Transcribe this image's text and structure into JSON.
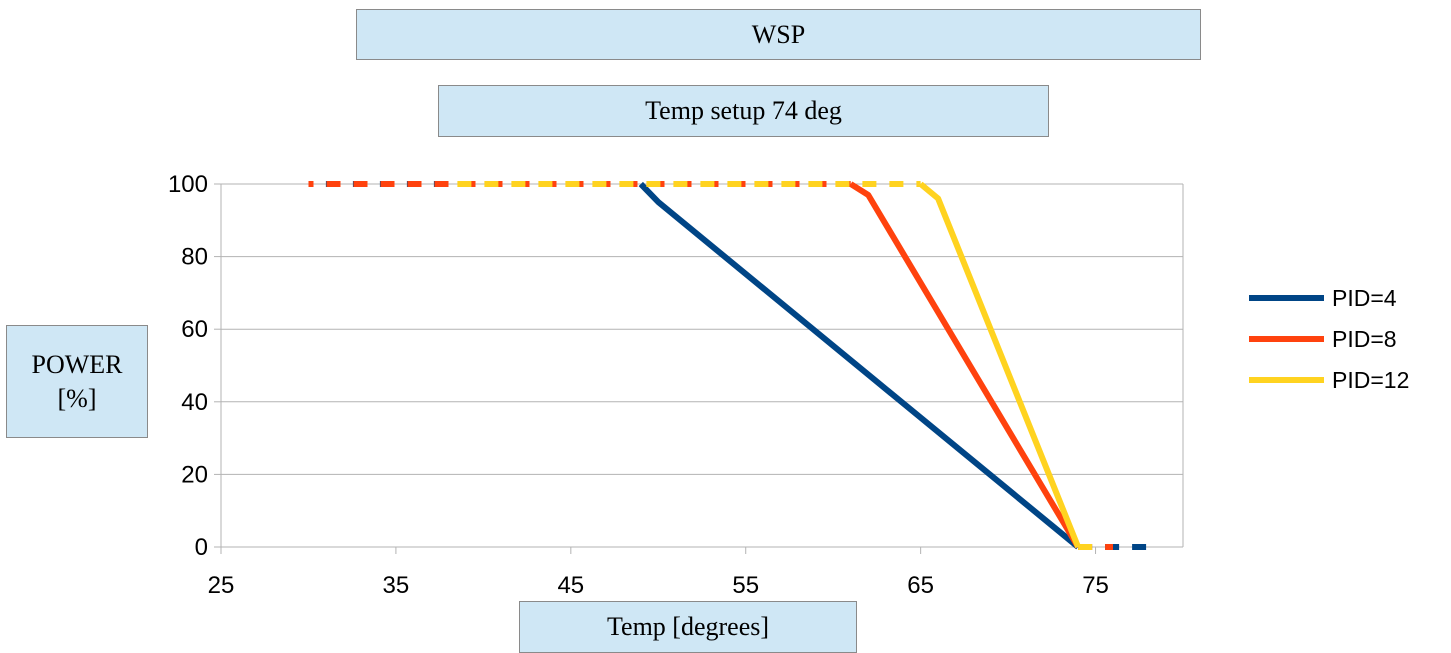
{
  "chart_data": {
    "type": "line",
    "title": "WSP",
    "subtitle": "Temp setup 74 deg",
    "xlabel": "Temp [degrees]",
    "ylabel_line1": "POWER",
    "ylabel_line2": "[%]",
    "xlim": [
      25,
      80
    ],
    "ylim": [
      0,
      100
    ],
    "xticks": [
      25,
      35,
      45,
      55,
      65,
      75
    ],
    "yticks": [
      0,
      20,
      40,
      60,
      80,
      100
    ],
    "grid": "horizontal",
    "legend_position": "right",
    "series": [
      {
        "name": "PID=4",
        "color": "#004586",
        "dashed": [
          [
            31,
            100
          ],
          [
            49,
            100
          ]
        ],
        "solid": [
          [
            49,
            100
          ],
          [
            50,
            95
          ],
          [
            74,
            0
          ]
        ],
        "tail": [
          [
            74,
            0
          ],
          [
            78,
            0
          ]
        ]
      },
      {
        "name": "PID=8",
        "color": "#ff420e",
        "dashed": [
          [
            30,
            100
          ],
          [
            61,
            100
          ]
        ],
        "solid": [
          [
            61,
            100
          ],
          [
            62,
            97
          ],
          [
            74,
            0
          ]
        ],
        "tail": [
          [
            74,
            0
          ],
          [
            76,
            0
          ]
        ]
      },
      {
        "name": "PID=12",
        "color": "#ffd320",
        "dashed": [
          [
            38,
            100
          ],
          [
            65,
            100
          ]
        ],
        "solid": [
          [
            65,
            100
          ],
          [
            66,
            96
          ],
          [
            74,
            0
          ]
        ],
        "tail": [
          [
            74,
            0
          ],
          [
            75,
            0
          ]
        ]
      }
    ]
  }
}
